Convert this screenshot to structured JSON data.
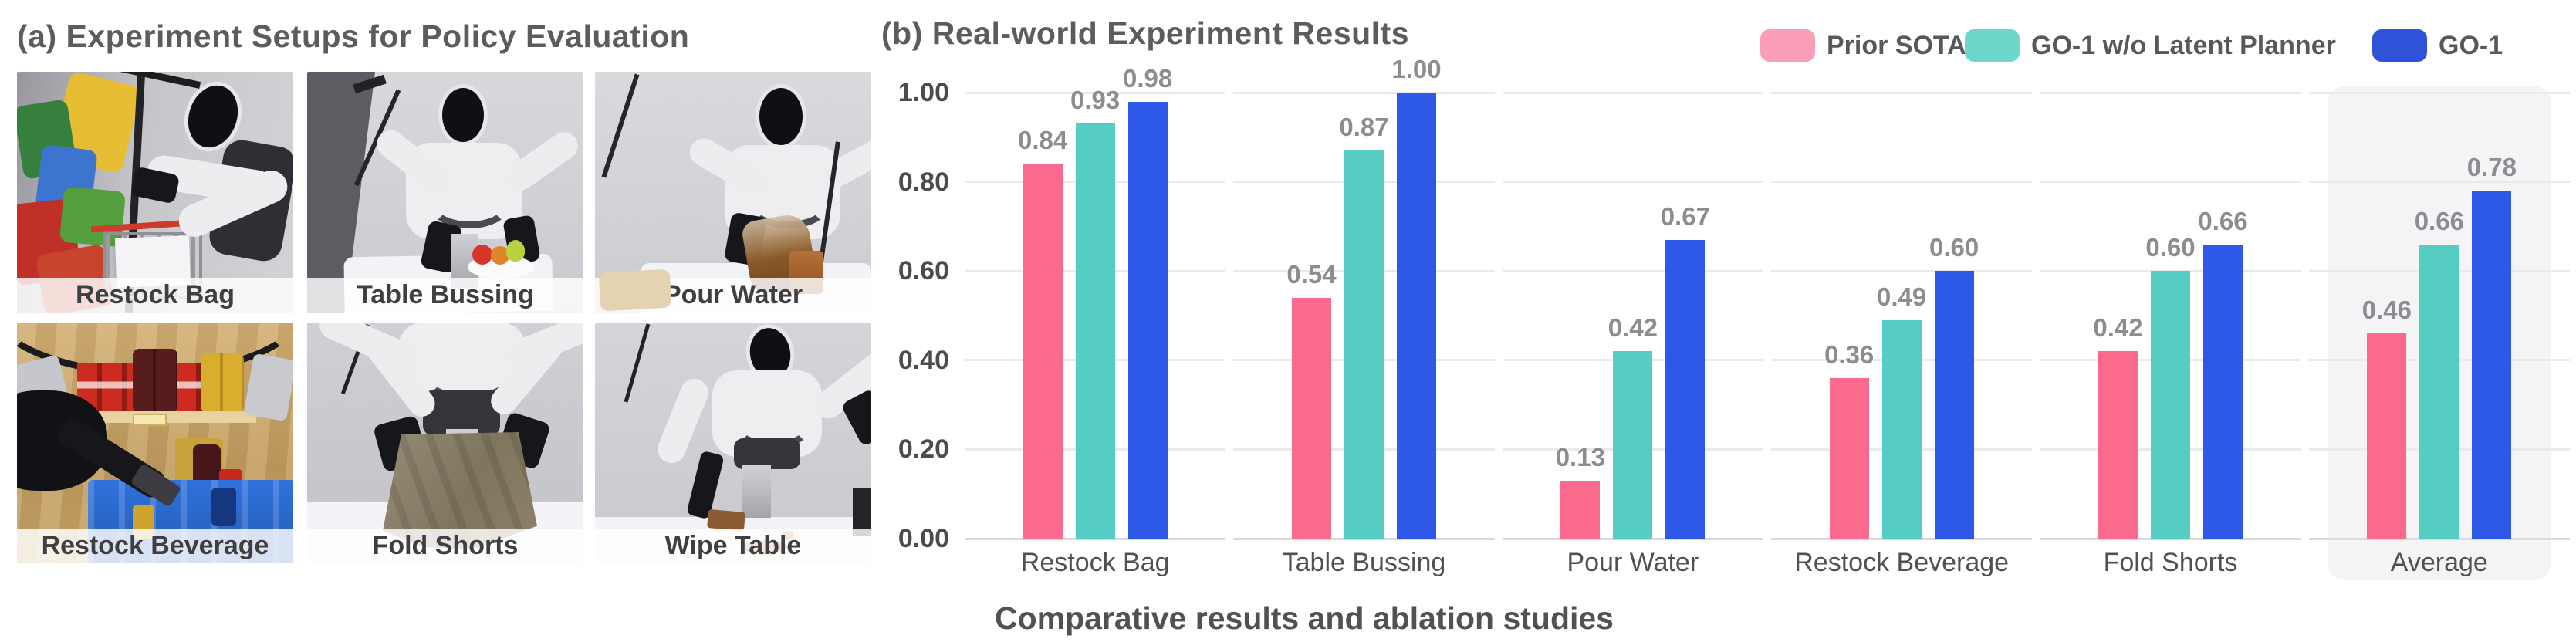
{
  "panel_a": {
    "title": "(a) Experiment Setups for Policy Evaluation",
    "photos": [
      {
        "label": "Restock Bag"
      },
      {
        "label": "Table Bussing"
      },
      {
        "label": "Pour Water"
      },
      {
        "label": "Restock Beverage"
      },
      {
        "label": "Fold Shorts"
      },
      {
        "label": "Wipe Table"
      }
    ]
  },
  "panel_b": {
    "title": "(b) Real-world Experiment Results",
    "caption": "Comparative results and ablation studies",
    "legend": [
      {
        "label": "Prior SOTA",
        "color": "#FA9EB7"
      },
      {
        "label": "GO-1 w/o Latent Planner",
        "color": "#6FD6CC"
      },
      {
        "label": "GO-1",
        "color": "#2F53D8"
      }
    ]
  },
  "chart_data": {
    "type": "bar",
    "title": "(b) Real-world Experiment Results",
    "categories": [
      "Restock Bag",
      "Table Bussing",
      "Pour Water",
      "Restock Beverage",
      "Fold Shorts",
      "Average"
    ],
    "series": [
      {
        "name": "Prior SOTA",
        "color": "#FB6A8C",
        "values": [
          0.84,
          0.54,
          0.13,
          0.36,
          0.42,
          0.46
        ]
      },
      {
        "name": "GO-1 w/o Latent Planner",
        "color": "#55CDC3",
        "values": [
          0.93,
          0.87,
          0.42,
          0.49,
          0.6,
          0.66
        ]
      },
      {
        "name": "GO-1",
        "color": "#2E59E8",
        "values": [
          0.98,
          1.0,
          0.67,
          0.6,
          0.66,
          0.78
        ]
      }
    ],
    "ylim": [
      0,
      1.0
    ],
    "yticks": [
      "1.00",
      "0.80",
      "0.60",
      "0.40",
      "0.20",
      "0.00"
    ],
    "grid": true,
    "legend_position": "top-right",
    "highlight_category": "Average",
    "highlight_color": "#F4F4F6",
    "grid_color": "#EAEAEC",
    "axis_color": "#DADADC"
  }
}
